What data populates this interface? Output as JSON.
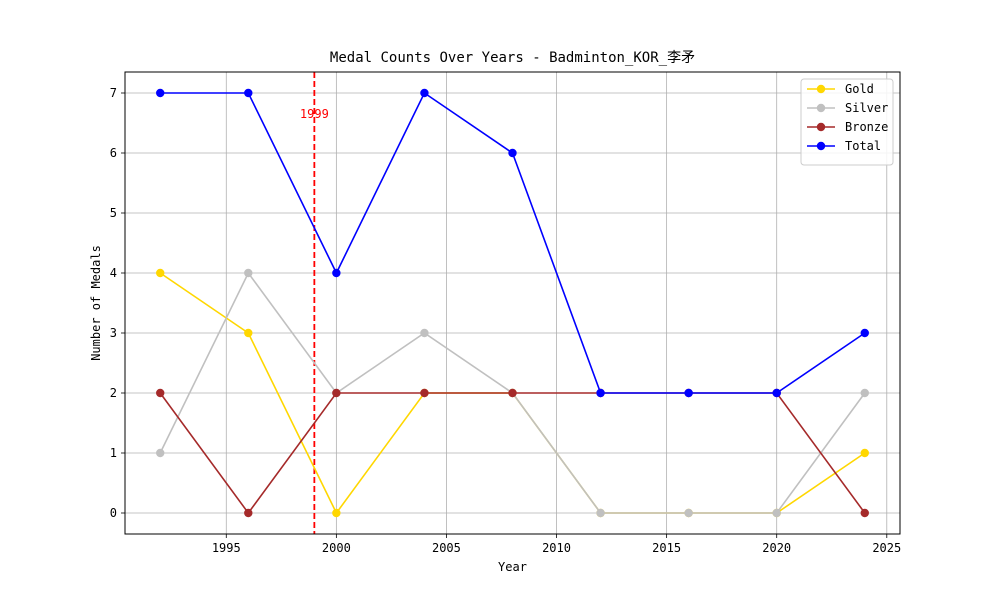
{
  "chart_data": {
    "type": "line",
    "title": "Medal Counts Over Years - Badminton_KOR_李矛",
    "xlabel": "Year",
    "ylabel": "Number of Medals",
    "x": [
      1992,
      1996,
      2000,
      2004,
      2008,
      2012,
      2016,
      2020,
      2024
    ],
    "xlim": [
      1990.4,
      2025.6
    ],
    "ylim": [
      -0.35,
      7.35
    ],
    "xticks": [
      1995,
      2000,
      2005,
      2010,
      2015,
      2020,
      2025
    ],
    "yticks": [
      0,
      1,
      2,
      3,
      4,
      5,
      6,
      7
    ],
    "grid": true,
    "legend_position": "top-right",
    "series": [
      {
        "name": "Gold",
        "color": "#FFD700",
        "values": [
          4,
          3,
          0,
          2,
          2,
          0,
          0,
          0,
          1
        ]
      },
      {
        "name": "Silver",
        "color": "#C0C0C0",
        "values": [
          1,
          4,
          2,
          3,
          2,
          0,
          0,
          0,
          2
        ]
      },
      {
        "name": "Bronze",
        "color": "#A52A2A",
        "values": [
          2,
          0,
          2,
          2,
          2,
          2,
          2,
          2,
          0
        ]
      },
      {
        "name": "Total",
        "color": "#0000FF",
        "values": [
          7,
          7,
          4,
          7,
          6,
          2,
          2,
          2,
          3
        ]
      }
    ],
    "annotations": [
      {
        "type": "vline",
        "x": 1999,
        "label": "1999",
        "color": "#FF0000",
        "label_y": 6.65
      }
    ]
  }
}
